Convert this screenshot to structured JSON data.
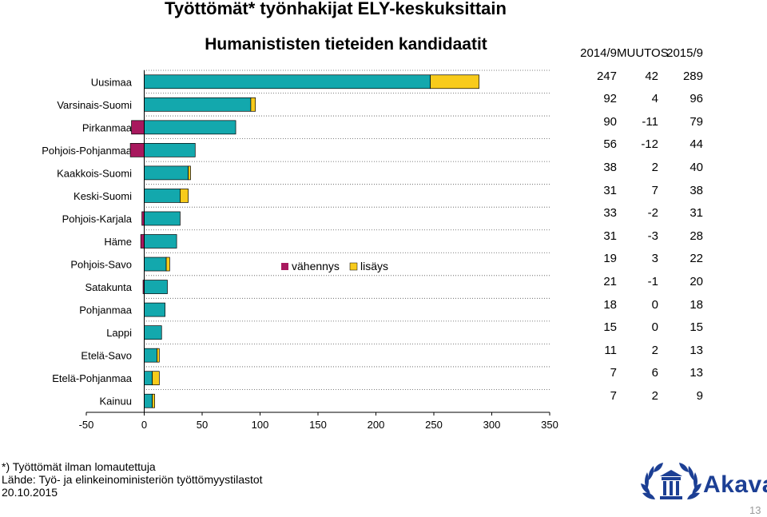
{
  "header": {
    "title": "Työttömät* työnhakijat ELY-keskuksittain",
    "subtitle": "Humanististen tieteiden kandidaatit"
  },
  "chart_data": {
    "type": "bar",
    "orientation": "horizontal",
    "stacked": true,
    "categories": [
      "Uusimaa",
      "Varsinais-Suomi",
      "Pirkanmaa",
      "Pohjois-Pohjanmaa",
      "Kaakkois-Suomi",
      "Keski-Suomi",
      "Pohjois-Karjala",
      "Häme",
      "Pohjois-Savo",
      "Satakunta",
      "Pohjanmaa",
      "Lappi",
      "Etelä-Savo",
      "Etelä-Pohjanmaa",
      "Kainuu"
    ],
    "series": [
      {
        "name": "",
        "values": [
          247,
          92,
          79,
          44,
          38,
          31,
          31,
          28,
          19,
          20,
          18,
          15,
          11,
          7,
          7
        ]
      },
      {
        "name": "vähennys",
        "values": [
          0,
          0,
          -11,
          -12,
          0,
          0,
          -2,
          -3,
          0,
          -1,
          0,
          0,
          0,
          0,
          0
        ]
      },
      {
        "name": "lisäys",
        "values": [
          42,
          4,
          0,
          0,
          2,
          7,
          0,
          0,
          3,
          0,
          0,
          0,
          2,
          6,
          2
        ]
      }
    ],
    "colors": {
      "base": "#13a8ad",
      "vahennys": "#a8195e",
      "lisays": "#f8cb1b",
      "axis": "#000000",
      "grid": "#555555"
    },
    "xlim": [
      -50,
      350
    ],
    "xticks": [
      "-50",
      "0",
      "50",
      "100",
      "150",
      "200",
      "250",
      "300",
      "350"
    ],
    "grid": "dotted horizontal",
    "legend_position": "center"
  },
  "table": {
    "headers": [
      "2014/9",
      "MUUTOS",
      "2015/9"
    ],
    "rows": [
      [
        "247",
        "42",
        "289"
      ],
      [
        "92",
        "4",
        "96"
      ],
      [
        "90",
        "-11",
        "79"
      ],
      [
        "56",
        "-12",
        "44"
      ],
      [
        "38",
        "2",
        "40"
      ],
      [
        "31",
        "7",
        "38"
      ],
      [
        "33",
        "-2",
        "31"
      ],
      [
        "31",
        "-3",
        "28"
      ],
      [
        "19",
        "3",
        "22"
      ],
      [
        "21",
        "-1",
        "20"
      ],
      [
        "18",
        "0",
        "18"
      ],
      [
        "15",
        "0",
        "15"
      ],
      [
        "11",
        "2",
        "13"
      ],
      [
        "7",
        "6",
        "13"
      ],
      [
        "7",
        "2",
        "9"
      ]
    ]
  },
  "footer": {
    "note": "*) Työttömät ilman lomautettuja",
    "source": "Lähde: Työ- ja elinkeinoministeriön työttömyystilastot",
    "date": "20.10.2015",
    "page_number": "13"
  },
  "logo": {
    "text": "Akava",
    "color": "#1c3f94"
  }
}
